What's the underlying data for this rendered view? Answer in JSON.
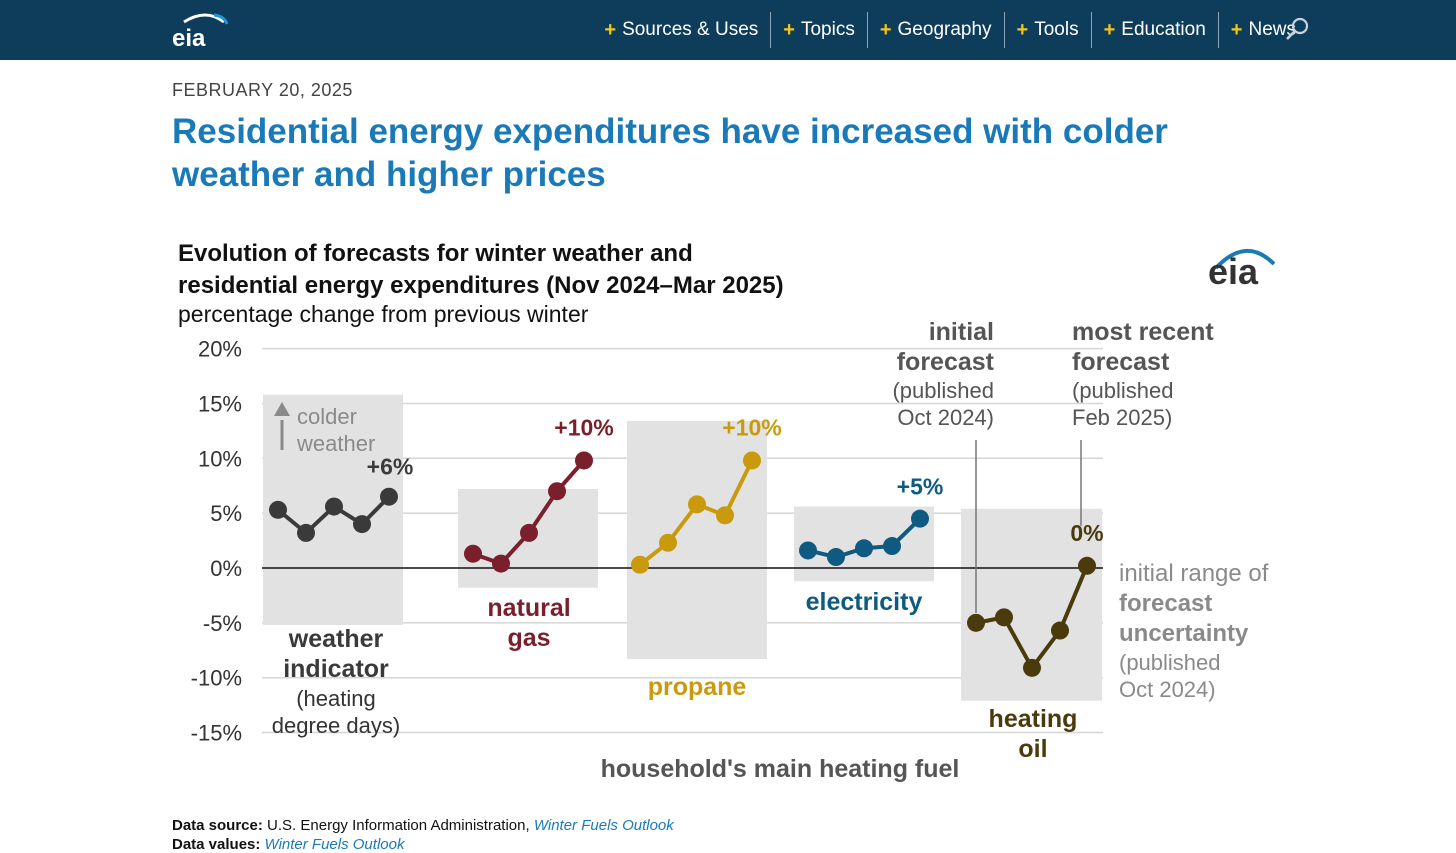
{
  "nav": {
    "items": [
      "Sources & Uses",
      "Topics",
      "Geography",
      "Tools",
      "Education",
      "News"
    ]
  },
  "colors": {
    "navbar": "#0e3d5c",
    "accent": "#1a7ab8",
    "plus": "#f5c518"
  },
  "icons": {
    "logo": "eia-logo",
    "search": "search-icon",
    "plus": "plus-icon"
  },
  "article": {
    "date": "FEBRUARY 20, 2025",
    "headline": "Residential energy expenditures have increased with colder weather and higher prices"
  },
  "chart_data": {
    "type": "line",
    "title_line1": "Evolution of forecasts for winter weather and",
    "title_line2": "residential energy expenditures (Nov 2024–Mar 2025)",
    "subtitle": "percentage change from previous winter",
    "ylim": [
      -15,
      20
    ],
    "yticks": [
      "20%",
      "15%",
      "10%",
      "5%",
      "0%",
      "-5%",
      "-10%",
      "-15%"
    ],
    "xlabel": "household's main heating fuel",
    "series": [
      {
        "key": "weather",
        "label_lines": [
          "weather",
          "indicator"
        ],
        "sub_lines": [
          "(heating",
          "degree days)"
        ],
        "color": "#3a3a3a",
        "values": [
          5.3,
          3.2,
          5.6,
          4.0,
          6.5
        ],
        "range": [
          -5.2,
          15.8
        ],
        "end_label": "+6%"
      },
      {
        "key": "natural-gas",
        "label_lines": [
          "natural",
          "gas"
        ],
        "sub_lines": [],
        "color": "#7a1f2b",
        "values": [
          1.3,
          0.4,
          3.2,
          7.0,
          9.8
        ],
        "range": [
          -1.8,
          7.2
        ],
        "end_label": "+10%"
      },
      {
        "key": "propane",
        "label_lines": [
          "propane"
        ],
        "sub_lines": [],
        "color": "#c99a0e",
        "values": [
          0.3,
          2.3,
          5.8,
          4.8,
          9.8
        ],
        "range": [
          -8.3,
          13.4
        ],
        "end_label": "+10%"
      },
      {
        "key": "electricity",
        "label_lines": [
          "electricity"
        ],
        "sub_lines": [],
        "color": "#0f5a80",
        "values": [
          1.6,
          1.0,
          1.8,
          2.0,
          4.5
        ],
        "range": [
          -1.2,
          5.6
        ],
        "end_label": "+5%"
      },
      {
        "key": "heating-oil",
        "label_lines": [
          "heating",
          "oil"
        ],
        "sub_lines": [],
        "color": "#4a3a0c",
        "values": [
          -5.0,
          -4.5,
          -9.1,
          -5.7,
          0.2
        ],
        "range": [
          -12.1,
          5.4
        ],
        "end_label": "0%"
      }
    ],
    "annotations": {
      "colder": [
        "colder",
        "weather"
      ],
      "initial": [
        "initial",
        "forecast",
        "(published",
        "Oct 2024)"
      ],
      "recent": [
        "most recent",
        "forecast",
        "(published",
        "Feb 2025)"
      ],
      "range": [
        "initial range of",
        "forecast",
        "uncertainty",
        "(published",
        "Oct 2024)"
      ]
    },
    "logo_text": "eia"
  },
  "footer": {
    "source_label": "Data source:",
    "source_text": "U.S. Energy Information Administration,",
    "source_link": "Winter Fuels Outlook",
    "values_label": "Data values:",
    "values_link": "Winter Fuels Outlook"
  }
}
